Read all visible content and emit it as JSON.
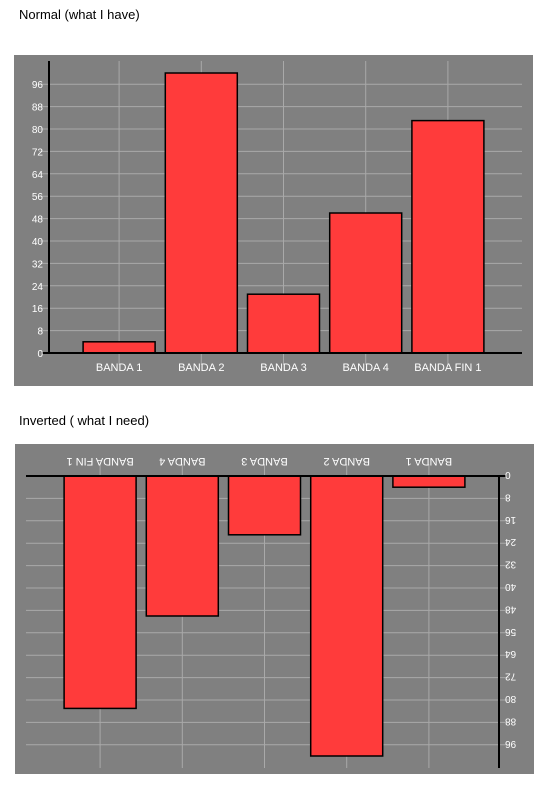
{
  "headings": {
    "normal": "Normal (what I have)",
    "inverted": "Inverted ( what I need)"
  },
  "colors": {
    "panel_bg": "#808080",
    "grid": "#a9a9a9",
    "bar_fill": "#ff3b3b",
    "bar_stroke": "#000000",
    "axis": "#000000",
    "label": "#ffffff"
  },
  "chart_data": [
    {
      "type": "bar",
      "categories": [
        "BANDA 1",
        "BANDA 2",
        "BANDA 3",
        "BANDA 4",
        "BANDA FIN 1"
      ],
      "values": [
        4,
        100,
        21,
        50,
        83
      ],
      "ylim": [
        0,
        100
      ],
      "yticks": [
        0,
        8,
        16,
        24,
        32,
        40,
        48,
        56,
        64,
        72,
        80,
        88,
        96
      ],
      "grid": true,
      "orientation": "normal"
    },
    {
      "type": "bar",
      "categories": [
        "BANDA 1",
        "BANDA 2",
        "BANDA 3",
        "BANDA 4",
        "BANDA FIN 1"
      ],
      "values": [
        4,
        100,
        21,
        50,
        83
      ],
      "ylim": [
        0,
        100
      ],
      "yticks": [
        0,
        8,
        16,
        24,
        32,
        40,
        48,
        56,
        64,
        72,
        80,
        88,
        96
      ],
      "grid": true,
      "orientation": "rotated-180"
    }
  ]
}
